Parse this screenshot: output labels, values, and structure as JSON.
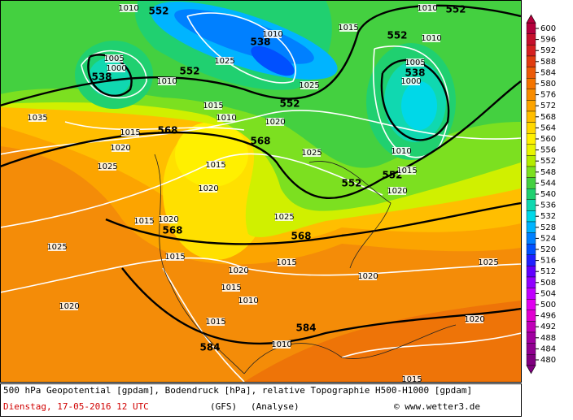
{
  "map": {
    "contour_labels": [
      "552",
      "1010",
      "552",
      "1010",
      "538",
      "1010",
      "1025",
      "552",
      "1010",
      "1015",
      "1005",
      "1000",
      "538",
      "1010",
      "552",
      "1005",
      "538",
      "1000",
      "1025",
      "552",
      "1015",
      "1010",
      "1035",
      "1015",
      "568",
      "1020",
      "1020",
      "568",
      "1025",
      "1010",
      "1025",
      "1015",
      "552",
      "1015",
      "552",
      "1020",
      "1020",
      "1015",
      "1020",
      "1025",
      "568",
      "568",
      "1025",
      "1015",
      "1025",
      "1015",
      "1020",
      "1020",
      "1015",
      "1010",
      "1020",
      "1020",
      "1015",
      "584",
      "584",
      "1010",
      "1015"
    ]
  },
  "colorbar": {
    "ticks": [
      600,
      596,
      592,
      588,
      584,
      580,
      576,
      572,
      568,
      564,
      560,
      556,
      552,
      548,
      544,
      540,
      536,
      532,
      528,
      524,
      520,
      516,
      512,
      508,
      504,
      500,
      496,
      492,
      488,
      484,
      480
    ],
    "colors": [
      "#b4003c",
      "#c4102c",
      "#d42020",
      "#e03c10",
      "#ec5a08",
      "#f47400",
      "#f88c00",
      "#fca400",
      "#ffbe00",
      "#ffd800",
      "#fff000",
      "#e8f400",
      "#b4ec00",
      "#7ce020",
      "#44d040",
      "#20d070",
      "#10d8b0",
      "#00d8e8",
      "#00b4ff",
      "#0080ff",
      "#0050ff",
      "#2020ff",
      "#6000ff",
      "#9000ff",
      "#c000ff",
      "#e000f0",
      "#e000d0",
      "#c000b8",
      "#a000a0",
      "#900090",
      "#800080"
    ]
  },
  "caption": {
    "line1": "500 hPa Geopotential [gpdam], Bodendruck [hPa], relative Topographie H500-H1000 [gpdam]",
    "date": "Dienstag, 17-05-2016  12 UTC",
    "model": "(GFS)",
    "kind": "(Analyse)",
    "credit": "© www.wetter3.de"
  }
}
